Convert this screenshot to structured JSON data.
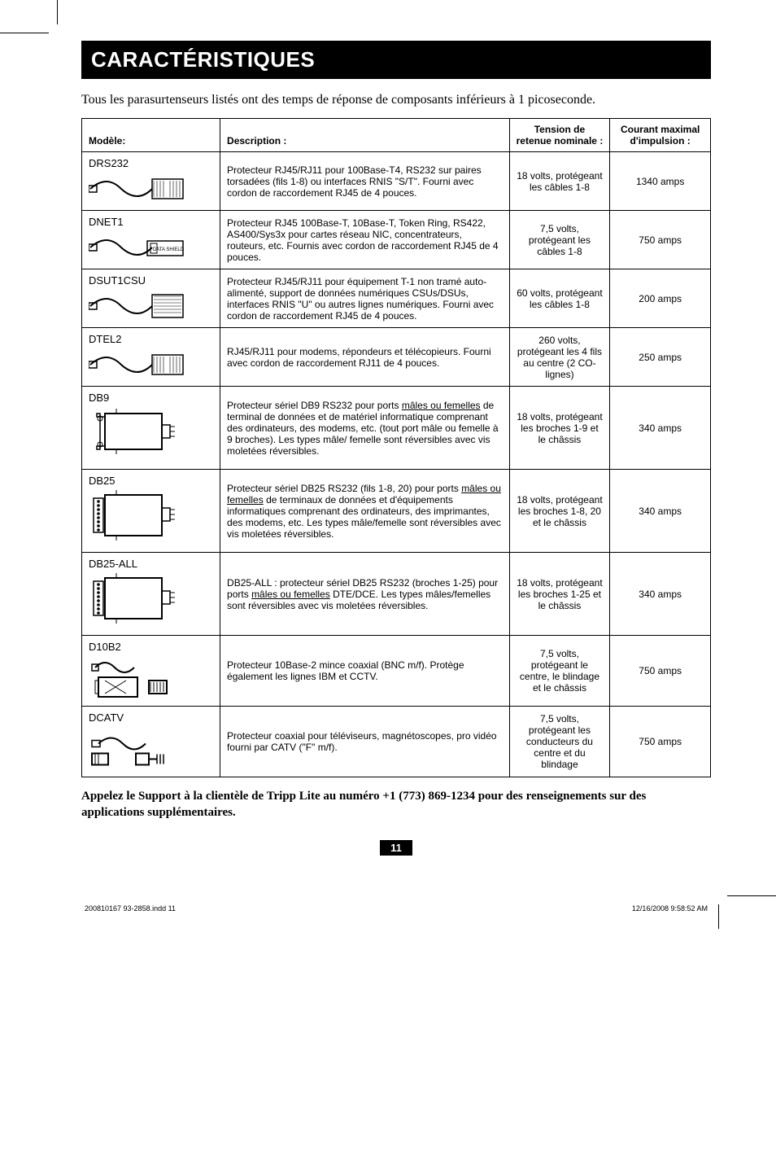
{
  "title": "CARACTÉRISTIQUES",
  "intro": "Tous les parasurtenseurs listés ont des temps de réponse de composants inférieurs à 1 picoseconde.",
  "headers": {
    "model": "Modèle:",
    "description": "Description :",
    "voltage": "Tension de retenue nominale :",
    "current": "Courant maximal d'impulsion :"
  },
  "rows": [
    {
      "model": "DRS232",
      "glyph": "cable-jack-a",
      "description": "Protecteur RJ45/RJ11 pour 100Base-T4, RS232 sur paires torsadées (fils 1-8) ou interfaces RNIS \"S/T\". Fourni avec cordon de raccordement RJ45 de 4 pouces.",
      "voltage": "18 volts, protégeant les câbles 1-8",
      "current": "1340 amps"
    },
    {
      "model": "DNET1",
      "glyph": "cable-jack-b",
      "description": "Protecteur RJ45 100Base-T, 10Base-T, Token Ring, RS422, AS400/Sys3x pour cartes réseau NIC, concentrateurs, routeurs, etc. Fournis avec cordon de raccordement RJ45 de 4 pouces.",
      "voltage": "7,5 volts, protégeant les câbles 1-8",
      "current": "750 amps"
    },
    {
      "model": "DSUT1CSU",
      "glyph": "cable-jack-c",
      "description": "Protecteur RJ45/RJ11 pour équipement T-1 non tramé auto-alimenté, support de données numériques CSUs/DSUs, interfaces RNIS \"U\" ou autres lignes numériques. Fourni avec cordon de raccordement RJ45 de 4 pouces.",
      "voltage": "60 volts, protégeant les câbles 1-8",
      "current": "200 amps"
    },
    {
      "model": "DTEL2",
      "glyph": "cable-jack-a",
      "description": "RJ45/RJ11 pour modems, répondeurs et télécopieurs. Fourni avec cordon de raccordement RJ11 de 4 pouces.",
      "voltage": "260 volts, protégeant les 4 fils au centre (2 CO-lignes)",
      "current": "250 amps"
    },
    {
      "model": "DB9",
      "glyph": "dsub-a",
      "description_html": "Protecteur sériel DB9 RS232 pour ports <u>mâles ou femelles</u> de terminal de données et de matériel informatique comprenant des ordinateurs, des modems, etc. (tout port mâle ou femelle à 9 broches). Les types mâle/ femelle sont réversibles avec vis moletées réversibles.",
      "voltage": "18 volts, protégeant les broches 1-9 et le châssis",
      "current": "340 amps"
    },
    {
      "model": "DB25",
      "glyph": "dsub-b",
      "description_html": "Protecteur sériel DB25 RS232 (fils 1-8, 20) pour ports <u>mâles ou femelles</u> de terminaux de données et d'équipements informatiques comprenant des ordinateurs, des imprimantes, des modems, etc. Les types mâle/femelle sont réversibles avec vis moletées réversibles.",
      "voltage": "18 volts, protégeant les broches 1-8, 20 et le châssis",
      "current": "340 amps"
    },
    {
      "model": "DB25-ALL",
      "glyph": "dsub-b",
      "description_html": "DB25-ALL : protecteur sériel DB25 RS232 (broches 1-25) pour ports <u>mâles ou femelles</u> DTE/DCE. Les types mâles/femelles sont réversibles avec vis moletées réversibles.",
      "voltage": "18 volts, protégeant les broches 1-25 et le châssis",
      "current": "340 amps"
    },
    {
      "model": "D10B2",
      "glyph": "bnc",
      "description": "Protecteur 10Base-2 mince coaxial (BNC m/f). Protège également les lignes IBM et CCTV.",
      "voltage": "7,5 volts, protégeant le centre, le blindage et le châssis",
      "current": "750 amps"
    },
    {
      "model": "DCATV",
      "glyph": "coax",
      "description": "Protecteur coaxial pour téléviseurs, magnétoscopes, pro vidéo fourni par CATV (\"F\" m/f).",
      "voltage": "7,5 volts, protégeant les conducteurs du centre et du blindage",
      "current": "750 amps"
    }
  ],
  "footnote": "Appelez le Support à la clientèle de Tripp Lite au numéro +1 (773) 869-1234 pour des renseignements sur des applications supplémentaires.",
  "page_number": "11",
  "footer": {
    "left": "200810167  93-2858.indd   11",
    "right": "12/16/2008   9:58:52 AM"
  },
  "style": {
    "text_color": "#000000",
    "bg_color": "#ffffff",
    "titlebar_bg": "#000000",
    "titlebar_fg": "#ffffff",
    "border_color": "#000000",
    "title_fontsize": 26,
    "intro_fontsize": 16,
    "cell_fontsize": 12,
    "footnote_fontsize": 15,
    "footer_fontsize": 9
  }
}
